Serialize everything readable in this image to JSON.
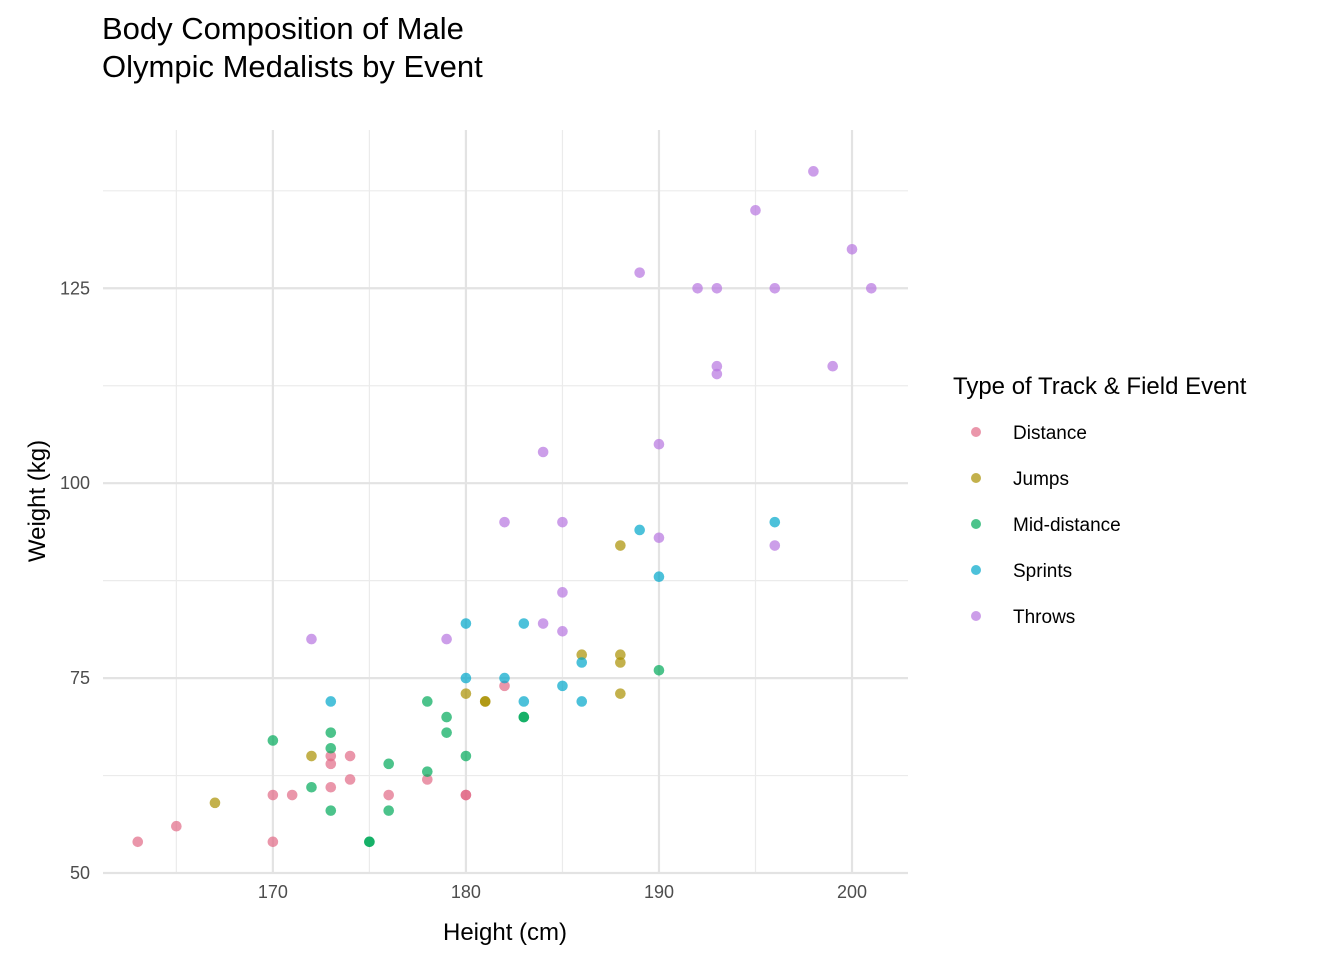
{
  "chart_data": {
    "type": "scatter",
    "title": [
      "Body Composition of Male",
      "Olympic Medalists by Event"
    ],
    "xlabel": "Height (cm)",
    "ylabel": "Weight (kg)",
    "xlim": [
      161.2,
      202.9
    ],
    "ylim": [
      50,
      145.3
    ],
    "xticks": [
      170,
      180,
      190,
      200
    ],
    "yticks": [
      50,
      75,
      100,
      125
    ],
    "x_minor": [
      165,
      175,
      185,
      195
    ],
    "y_minor": [
      62.5,
      87.5,
      112.5,
      137.5
    ],
    "grid": true,
    "legend": {
      "title": "Type of Track & Field Event",
      "placement": "right"
    },
    "series": [
      {
        "name": "Distance",
        "color": "#E16A86",
        "points": [
          [
            163,
            54
          ],
          [
            165,
            56
          ],
          [
            170,
            60
          ],
          [
            170,
            54
          ],
          [
            171,
            60
          ],
          [
            173,
            65
          ],
          [
            173,
            64
          ],
          [
            173,
            61
          ],
          [
            174,
            65
          ],
          [
            174,
            62
          ],
          [
            176,
            60
          ],
          [
            178,
            62
          ],
          [
            180,
            60
          ],
          [
            180,
            60
          ],
          [
            182,
            74
          ]
        ]
      },
      {
        "name": "Jumps",
        "color": "#AA9000",
        "points": [
          [
            167,
            59
          ],
          [
            172,
            65
          ],
          [
            180,
            73
          ],
          [
            181,
            72
          ],
          [
            181,
            72
          ],
          [
            186,
            78
          ],
          [
            188,
            92
          ],
          [
            188,
            78
          ],
          [
            188,
            77
          ],
          [
            188,
            73
          ]
        ]
      },
      {
        "name": "Mid-distance",
        "color": "#00AA5A",
        "points": [
          [
            170,
            67
          ],
          [
            172,
            61
          ],
          [
            173,
            68
          ],
          [
            173,
            66
          ],
          [
            173,
            58
          ],
          [
            175,
            54
          ],
          [
            175,
            54
          ],
          [
            176,
            64
          ],
          [
            176,
            58
          ],
          [
            178,
            72
          ],
          [
            178,
            63
          ],
          [
            179,
            70
          ],
          [
            179,
            68
          ],
          [
            180,
            65
          ],
          [
            183,
            70
          ],
          [
            183,
            70
          ],
          [
            190,
            76
          ]
        ]
      },
      {
        "name": "Sprints",
        "color": "#00A6CA",
        "points": [
          [
            173,
            72
          ],
          [
            180,
            82
          ],
          [
            180,
            75
          ],
          [
            182,
            75
          ],
          [
            183,
            82
          ],
          [
            183,
            72
          ],
          [
            185,
            74
          ],
          [
            186,
            77
          ],
          [
            186,
            72
          ],
          [
            189,
            94
          ],
          [
            190,
            88
          ],
          [
            196,
            95
          ]
        ]
      },
      {
        "name": "Throws",
        "color": "#B675E0",
        "points": [
          [
            172,
            80
          ],
          [
            179,
            80
          ],
          [
            182,
            95
          ],
          [
            184,
            104
          ],
          [
            184,
            82
          ],
          [
            185,
            95
          ],
          [
            185,
            86
          ],
          [
            185,
            81
          ],
          [
            189,
            127
          ],
          [
            190,
            105
          ],
          [
            190,
            93
          ],
          [
            192,
            125
          ],
          [
            193,
            125
          ],
          [
            193,
            115
          ],
          [
            193,
            114
          ],
          [
            195,
            135
          ],
          [
            196,
            125
          ],
          [
            196,
            92
          ],
          [
            198,
            140
          ],
          [
            199,
            115
          ],
          [
            200,
            130
          ],
          [
            201,
            125
          ]
        ]
      }
    ]
  }
}
